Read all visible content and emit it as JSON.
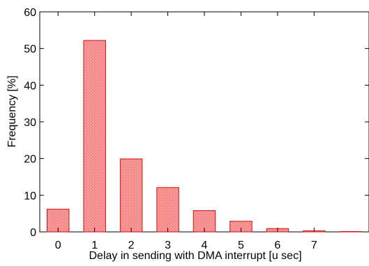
{
  "chart_data": {
    "type": "bar",
    "title": "",
    "xlabel": "Delay in sending with DMA interrupt [u sec]",
    "ylabel": "Frequency [%]",
    "categories": [
      "0",
      "1",
      "2",
      "3",
      "4",
      "5",
      "6",
      "7"
    ],
    "values": [
      6.2,
      52.2,
      19.9,
      12.1,
      5.8,
      2.9,
      0.9,
      0.3,
      0.1
    ],
    "x_values": [
      0,
      1,
      2,
      3,
      4,
      5,
      6,
      7,
      8
    ],
    "xticks": [
      0,
      1,
      2,
      3,
      4,
      5,
      6,
      7
    ],
    "yticks": [
      0,
      10,
      20,
      30,
      40,
      50,
      60
    ],
    "xlim": [
      -0.5,
      8.5
    ],
    "ylim": [
      0,
      60
    ],
    "grid": false,
    "legend": "none",
    "colors": {
      "bar_fill": "#f47f7f",
      "bar_edge": "#cc1010",
      "hatch": "#ffb4b4",
      "axis": "#000000"
    }
  }
}
